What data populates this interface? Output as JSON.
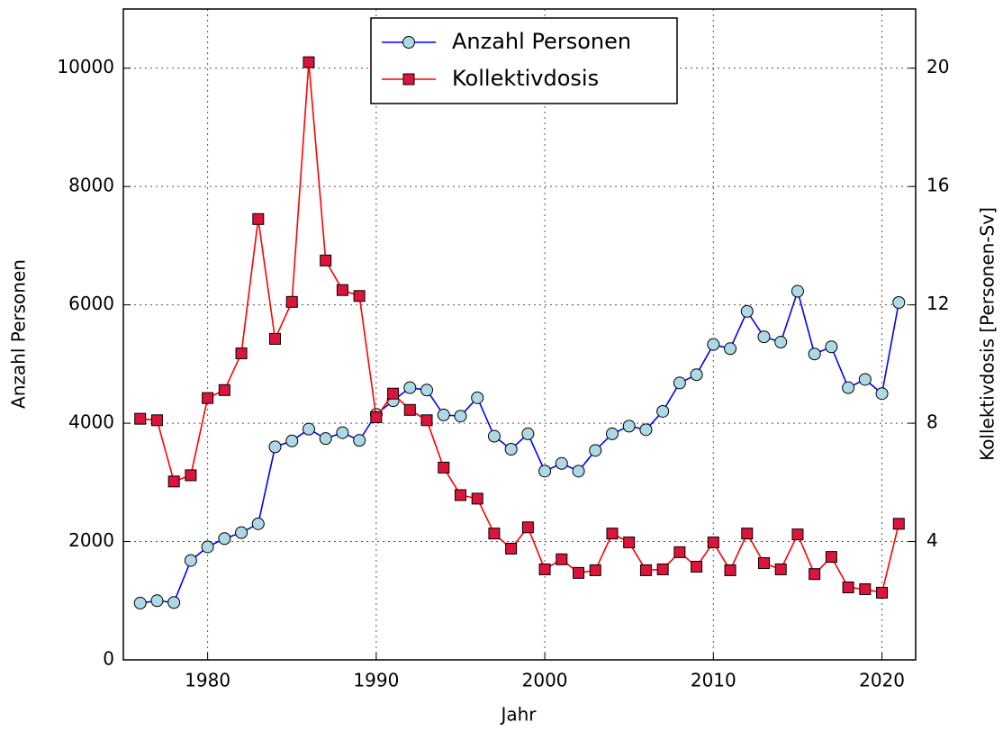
{
  "chart_data": {
    "type": "line",
    "x_label": "Jahr",
    "y_label": "Anzahl Personen",
    "y2_label": "Kollektivdosis [Personen-Sv]",
    "x": [
      1976,
      1977,
      1978,
      1979,
      1980,
      1981,
      1982,
      1983,
      1984,
      1985,
      1986,
      1987,
      1988,
      1989,
      1990,
      1991,
      1992,
      1993,
      1994,
      1995,
      1996,
      1997,
      1998,
      1999,
      2000,
      2001,
      2002,
      2003,
      2004,
      2005,
      2006,
      2007,
      2008,
      2009,
      2010,
      2011,
      2012,
      2013,
      2014,
      2015,
      2016,
      2017,
      2018,
      2019,
      2020,
      2021
    ],
    "series": [
      {
        "name": "Anzahl Personen",
        "color": "#0000ff",
        "marker": "circle",
        "marker_color": "#add8e6",
        "axis": "y",
        "values": [
          960,
          1000,
          970,
          1680,
          1910,
          2050,
          2150,
          2300,
          3600,
          3700,
          3900,
          3740,
          3840,
          3710,
          4150,
          4380,
          4600,
          4560,
          4140,
          4120,
          4430,
          3780,
          3560,
          3820,
          3190,
          3320,
          3190,
          3540,
          3820,
          3950,
          3890,
          4200,
          4680,
          4820,
          5330,
          5260,
          5890,
          5460,
          5370,
          6230,
          5170,
          5290,
          4600,
          4740,
          4500,
          6040
        ]
      },
      {
        "name": "Kollektivdosis",
        "color": "#ff0000",
        "marker": "square",
        "marker_color": "#dc143c",
        "axis": "y2",
        "values": [
          8.15,
          8.1,
          6.03,
          6.24,
          8.85,
          9.12,
          10.36,
          14.9,
          10.85,
          12.1,
          20.2,
          13.5,
          12.5,
          12.3,
          8.2,
          9.0,
          8.45,
          8.1,
          6.5,
          5.57,
          5.45,
          4.27,
          3.76,
          4.48,
          3.06,
          3.4,
          2.94,
          3.03,
          4.27,
          3.97,
          3.03,
          3.06,
          3.64,
          3.15,
          3.97,
          3.03,
          4.27,
          3.27,
          3.06,
          4.24,
          2.9,
          3.48,
          2.45,
          2.39,
          2.27,
          4.6
        ]
      }
    ],
    "xlim": [
      1975,
      2022
    ],
    "xticks": [
      1980,
      1990,
      2000,
      2010,
      2020
    ],
    "ylim": [
      0,
      11000
    ],
    "yticks": [
      0,
      2000,
      4000,
      6000,
      8000,
      10000
    ],
    "y2lim": [
      0,
      22
    ],
    "y2ticks": [
      4,
      8,
      12,
      16,
      20
    ],
    "grid": true,
    "legend": "upper center"
  }
}
